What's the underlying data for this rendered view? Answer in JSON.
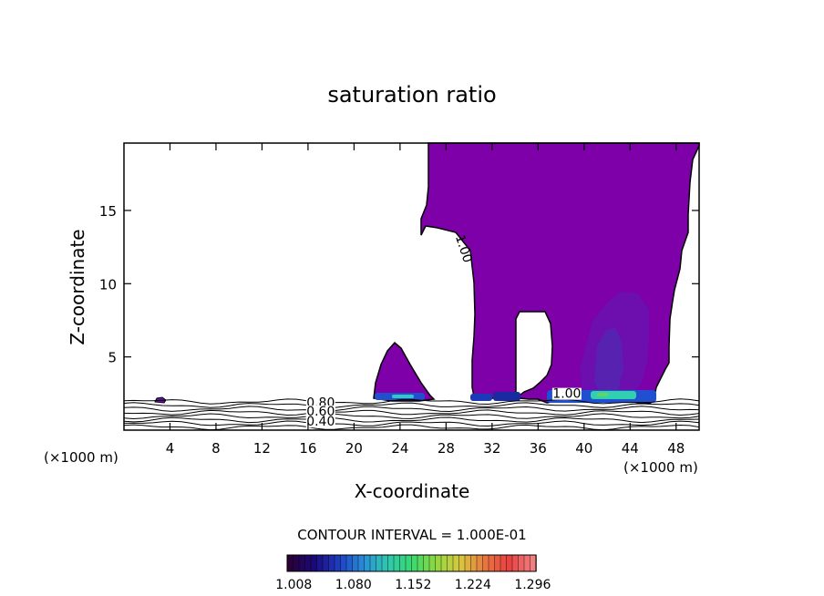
{
  "chart_data": {
    "type": "contour",
    "title": "saturation ratio",
    "xlabel": "X-coordinate",
    "ylabel": "Z-coordinate",
    "x_unit_left": "(×1000 m)",
    "x_unit_right": "(×1000 m)",
    "xlim": [
      0,
      50
    ],
    "ylim": [
      0,
      19.6
    ],
    "x_ticks": [
      4,
      8,
      12,
      16,
      20,
      24,
      28,
      32,
      36,
      40,
      44,
      48
    ],
    "y_ticks": [
      5,
      10,
      15
    ],
    "contour_interval_text": "CONTOUR INTERVAL = 1.000E-01",
    "contour_labels": [
      {
        "text": "0.80",
        "x": 17.1,
        "y": 1.6
      },
      {
        "text": "0.60",
        "x": 17.1,
        "y": 1.0
      },
      {
        "text": "0.40",
        "x": 17.1,
        "y": 0.3
      },
      {
        "text": "1.00",
        "x": 29.2,
        "y": 12.3,
        "rotation": 72
      },
      {
        "text": "1.00",
        "x": 38.5,
        "y": 2.2
      }
    ],
    "colorbar": {
      "tick_labels": [
        "1.008",
        "1.080",
        "1.152",
        "1.224",
        "1.296"
      ],
      "range": [
        1.0,
        1.3
      ],
      "colors": [
        "#2a0038",
        "#1a0a7a",
        "#1e3cc0",
        "#2a8cd8",
        "#30c8b0",
        "#38d870",
        "#90d840",
        "#d8c840",
        "#e87840",
        "#e84040",
        "#f08080"
      ]
    },
    "fill_color_main": "#7d00a8",
    "fill_color_dark": "#5a1aa8"
  }
}
